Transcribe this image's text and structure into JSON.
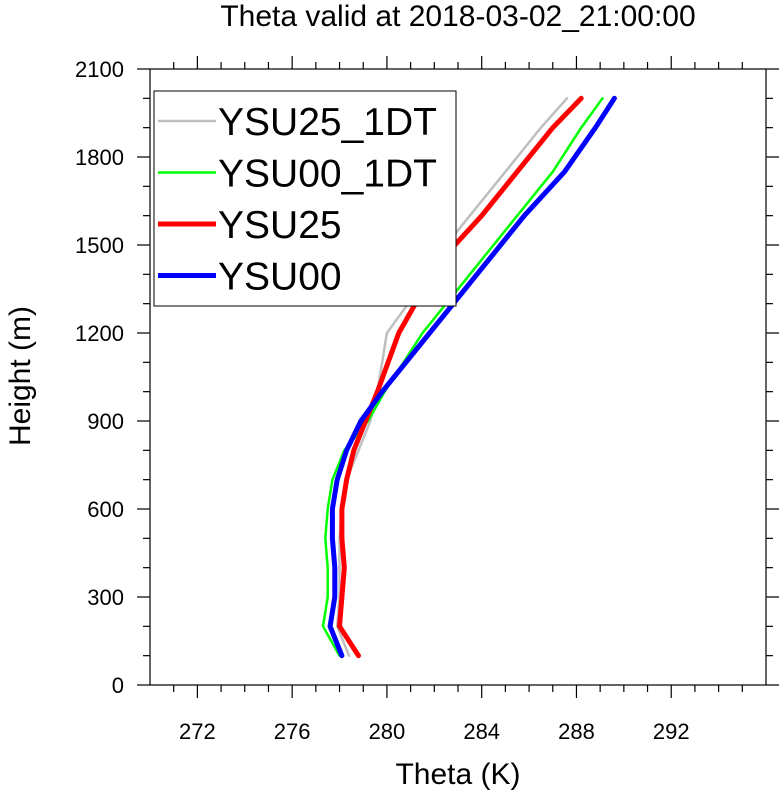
{
  "chart_data": {
    "type": "line",
    "title": "Theta valid at 2018-03-02_21:00:00",
    "xlabel": "Theta (K)",
    "ylabel": "Height (m)",
    "xlim": [
      270,
      296
    ],
    "ylim": [
      0,
      2100
    ],
    "xticks": [
      272,
      276,
      280,
      284,
      288,
      292
    ],
    "yticks": [
      0,
      300,
      600,
      900,
      1200,
      1500,
      1800,
      2100
    ],
    "grid": false,
    "legend_position": "top-left",
    "series": [
      {
        "name": "YSU25_1DT",
        "color": "#bfbfbf",
        "points": [
          [
            278.4,
            100
          ],
          [
            277.9,
            200
          ],
          [
            278.0,
            300
          ],
          [
            278.0,
            400
          ],
          [
            278.0,
            500
          ],
          [
            278.1,
            600
          ],
          [
            278.3,
            700
          ],
          [
            278.8,
            800
          ],
          [
            279.3,
            900
          ],
          [
            279.6,
            1000
          ],
          [
            280.0,
            1200
          ],
          [
            280.9,
            1300
          ],
          [
            282.0,
            1450
          ],
          [
            283.5,
            1600
          ],
          [
            285.0,
            1750
          ],
          [
            286.5,
            1900
          ],
          [
            287.6,
            2000
          ]
        ]
      },
      {
        "name": "YSU00_1DT",
        "color": "#00ff00",
        "points": [
          [
            278.0,
            100
          ],
          [
            277.3,
            200
          ],
          [
            277.5,
            300
          ],
          [
            277.5,
            400
          ],
          [
            277.4,
            500
          ],
          [
            277.5,
            600
          ],
          [
            277.7,
            700
          ],
          [
            278.2,
            800
          ],
          [
            279.2,
            900
          ],
          [
            279.9,
            1000
          ],
          [
            281.5,
            1200
          ],
          [
            282.5,
            1300
          ],
          [
            284.0,
            1450
          ],
          [
            285.5,
            1600
          ],
          [
            287.0,
            1750
          ],
          [
            288.2,
            1900
          ],
          [
            289.1,
            2000
          ]
        ]
      },
      {
        "name": "YSU25",
        "color": "#ff0000",
        "points": [
          [
            278.8,
            100
          ],
          [
            278.0,
            200
          ],
          [
            278.1,
            300
          ],
          [
            278.2,
            400
          ],
          [
            278.1,
            500
          ],
          [
            278.1,
            600
          ],
          [
            278.3,
            700
          ],
          [
            278.6,
            800
          ],
          [
            279.1,
            900
          ],
          [
            279.6,
            1000
          ],
          [
            280.5,
            1200
          ],
          [
            281.2,
            1300
          ],
          [
            282.3,
            1450
          ],
          [
            284.0,
            1600
          ],
          [
            285.5,
            1750
          ],
          [
            287.0,
            1900
          ],
          [
            288.2,
            2000
          ]
        ]
      },
      {
        "name": "YSU00",
        "color": "#0000ff",
        "points": [
          [
            278.1,
            100
          ],
          [
            277.6,
            200
          ],
          [
            277.8,
            300
          ],
          [
            277.8,
            400
          ],
          [
            277.7,
            500
          ],
          [
            277.7,
            600
          ],
          [
            277.9,
            700
          ],
          [
            278.3,
            800
          ],
          [
            278.9,
            900
          ],
          [
            279.8,
            1000
          ],
          [
            281.8,
            1200
          ],
          [
            282.8,
            1300
          ],
          [
            284.3,
            1450
          ],
          [
            285.8,
            1600
          ],
          [
            287.5,
            1750
          ],
          [
            288.8,
            1900
          ],
          [
            289.6,
            2000
          ]
        ]
      }
    ]
  }
}
